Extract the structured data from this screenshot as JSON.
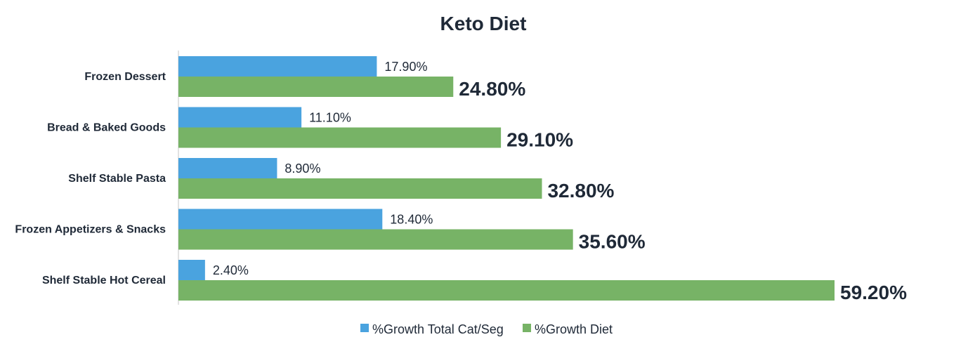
{
  "chart_data": {
    "type": "bar",
    "orientation": "horizontal",
    "title": "Keto Diet",
    "categories": [
      "Frozen Dessert",
      "Bread & Baked Goods",
      "Shelf Stable Pasta",
      "Frozen Appetizers & Snacks",
      "Shelf Stable Hot Cereal"
    ],
    "series": [
      {
        "name": "%Growth Total Cat/Seg",
        "color": "#4aa3df",
        "values": [
          17.9,
          11.1,
          8.9,
          18.4,
          2.4
        ],
        "labels": [
          "17.90%",
          "11.10%",
          "8.90%",
          "18.40%",
          "2.40%"
        ]
      },
      {
        "name": "%Growth Diet",
        "color": "#77b366",
        "values": [
          24.8,
          29.1,
          32.8,
          35.6,
          59.2
        ],
        "labels": [
          "24.80%",
          "29.10%",
          "32.80%",
          "35.60%",
          "59.20%"
        ]
      }
    ],
    "xlabel": "",
    "ylabel": "",
    "xlim": [
      0,
      60
    ],
    "grid": false,
    "legend_position": "bottom"
  }
}
